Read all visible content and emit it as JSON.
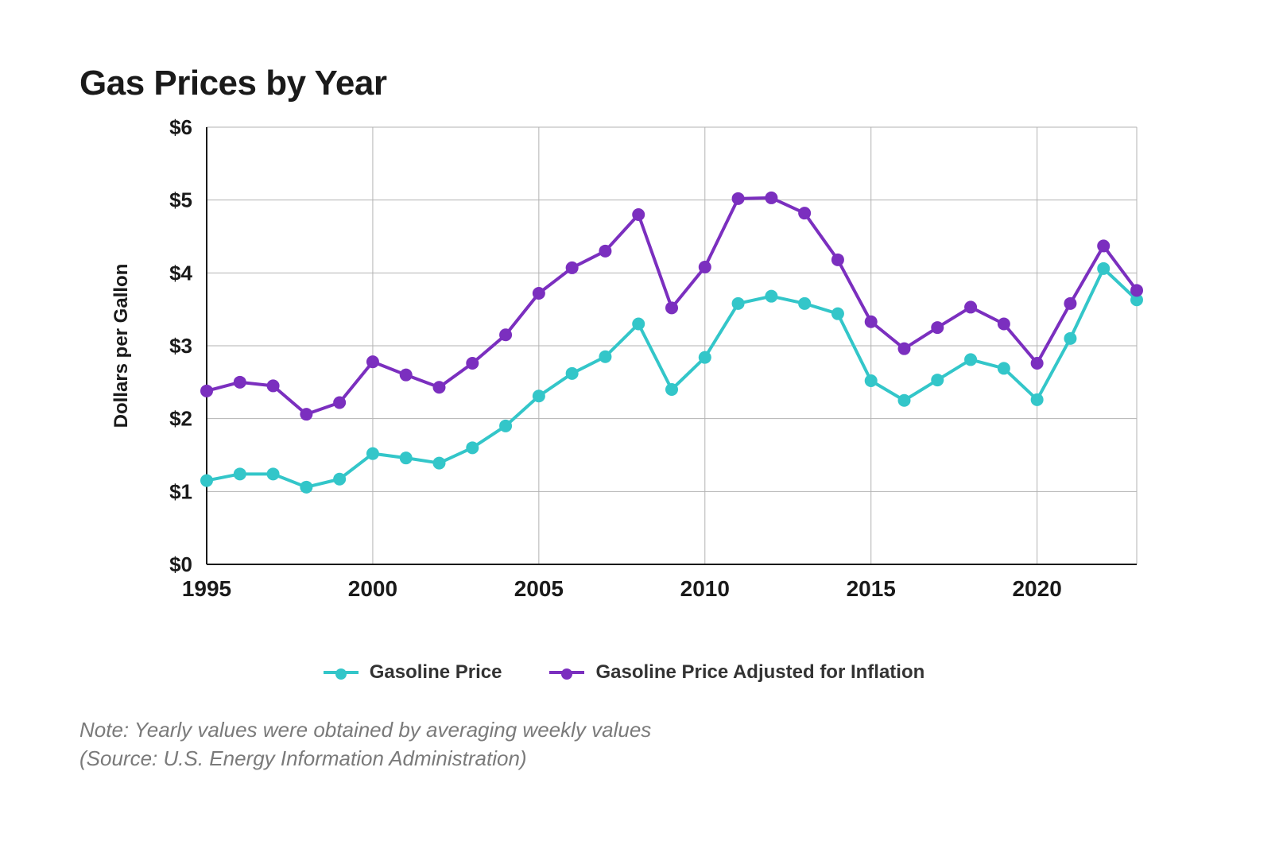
{
  "title": "Gas Prices by Year",
  "note_line1": "Note: Yearly values were obtained by averaging weekly values",
  "note_line2": "(Source: U.S. Energy Information Administration)",
  "chart": {
    "type": "line",
    "y_axis_label": "Dollars per Gallon",
    "y_axis_label_fontsize": 24,
    "background_color": "#ffffff",
    "grid_color": "#b3b3b3",
    "axis_color": "#1a1a1a",
    "tick_label_color": "#1a1a1a",
    "tick_fontsize": 26,
    "x_tick_fontsize": 28,
    "xlim": [
      1995,
      2023
    ],
    "ylim": [
      0,
      6
    ],
    "ytick_step": 1,
    "y_tick_labels": [
      "$0",
      "$1",
      "$2",
      "$3",
      "$4",
      "$5",
      "$6"
    ],
    "xtick_step": 5,
    "x_tick_labels": [
      "1995",
      "2000",
      "2005",
      "2010",
      "2015",
      "2020"
    ],
    "line_width": 4,
    "marker_radius": 8,
    "years": [
      1995,
      1996,
      1997,
      1998,
      1999,
      2000,
      2001,
      2002,
      2003,
      2004,
      2005,
      2006,
      2007,
      2008,
      2009,
      2010,
      2011,
      2012,
      2013,
      2014,
      2015,
      2016,
      2017,
      2018,
      2019,
      2020,
      2021,
      2022,
      2023
    ],
    "series": [
      {
        "name": "Gasoline Price",
        "color": "#33c6c9",
        "values": [
          1.15,
          1.24,
          1.24,
          1.06,
          1.17,
          1.52,
          1.46,
          1.39,
          1.6,
          1.9,
          2.31,
          2.62,
          2.85,
          3.3,
          2.4,
          2.84,
          3.58,
          3.68,
          3.58,
          3.44,
          2.52,
          2.25,
          2.53,
          2.81,
          2.69,
          2.26,
          3.1,
          4.06,
          3.63
        ]
      },
      {
        "name": "Gasoline Price Adjusted for Inflation",
        "color": "#7b2fbf",
        "values": [
          2.38,
          2.5,
          2.45,
          2.06,
          2.22,
          2.78,
          2.6,
          2.43,
          2.76,
          3.15,
          3.72,
          4.07,
          4.3,
          4.8,
          3.52,
          4.08,
          5.02,
          5.03,
          4.82,
          4.18,
          3.33,
          2.96,
          3.25,
          3.53,
          3.3,
          2.76,
          3.58,
          4.37,
          3.76
        ]
      }
    ],
    "legend_fontsize": 24
  }
}
